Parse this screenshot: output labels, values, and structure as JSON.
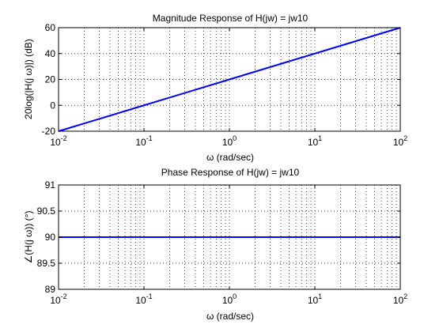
{
  "chart_data": [
    {
      "type": "line",
      "title": "Magnitude Response of H(jw) = jw10",
      "xlabel": "ω (rad/sec)",
      "ylabel": "20log(|H(j ω)|) (dB)",
      "xscale": "log",
      "xlim": [
        0.01,
        100
      ],
      "ylim": [
        -20,
        60
      ],
      "xticks": [
        0.01,
        0.1,
        1,
        10,
        100
      ],
      "xtick_labels": [
        {
          "base": "10",
          "exp": "-2"
        },
        {
          "base": "10",
          "exp": "-1"
        },
        {
          "base": "10",
          "exp": "0"
        },
        {
          "base": "10",
          "exp": "1"
        },
        {
          "base": "10",
          "exp": "2"
        }
      ],
      "yticks": [
        "-20",
        "0",
        "20",
        "40",
        "60"
      ],
      "grid": "dotted",
      "series": [
        {
          "color": "#0000ff",
          "x": [
            0.01,
            0.1,
            1,
            10,
            100
          ],
          "y": [
            -20,
            0,
            20,
            40,
            60
          ]
        }
      ]
    },
    {
      "type": "line",
      "title": "Phase Response of H(jw) = jw10",
      "xlabel": "ω (rad/sec)",
      "ylabel": "∠(H(j ω)) (°)",
      "xscale": "log",
      "xlim": [
        0.01,
        100
      ],
      "ylim": [
        89,
        91
      ],
      "xticks": [
        0.01,
        0.1,
        1,
        10,
        100
      ],
      "xtick_labels": [
        {
          "base": "10",
          "exp": "-2"
        },
        {
          "base": "10",
          "exp": "-1"
        },
        {
          "base": "10",
          "exp": "0"
        },
        {
          "base": "10",
          "exp": "1"
        },
        {
          "base": "10",
          "exp": "2"
        }
      ],
      "yticks": [
        "89",
        "89.5",
        "90",
        "90.5",
        "91"
      ],
      "grid": "dotted",
      "series": [
        {
          "color": "#0000ff",
          "x": [
            0.01,
            100
          ],
          "y": [
            90,
            90
          ]
        }
      ]
    }
  ]
}
